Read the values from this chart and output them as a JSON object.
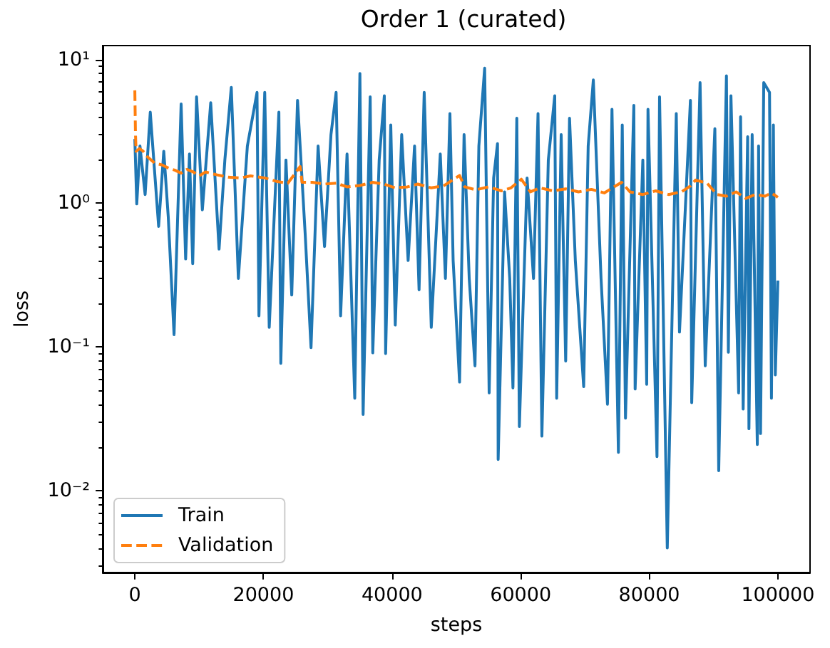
{
  "chart_data": {
    "type": "line",
    "title": "Order 1 (curated)",
    "xlabel": "steps",
    "ylabel": "loss",
    "log": "y",
    "xlim": [
      -5000,
      105000
    ],
    "xticks": [
      0,
      20000,
      40000,
      60000,
      80000,
      100000
    ],
    "ylim": [
      0.0027,
      12.5
    ],
    "yticks": [
      {
        "value": 0.003,
        "label": null
      },
      {
        "value": 0.004,
        "label": null
      },
      {
        "value": 0.005,
        "label": null
      },
      {
        "value": 0.006,
        "label": null
      },
      {
        "value": 0.007,
        "label": null
      },
      {
        "value": 0.008,
        "label": null
      },
      {
        "value": 0.009,
        "label": null
      },
      {
        "value": 0.01,
        "label": "10⁻²"
      },
      {
        "value": 0.02,
        "label": null
      },
      {
        "value": 0.03,
        "label": null
      },
      {
        "value": 0.04,
        "label": null
      },
      {
        "value": 0.05,
        "label": null
      },
      {
        "value": 0.06,
        "label": null
      },
      {
        "value": 0.07,
        "label": null
      },
      {
        "value": 0.08,
        "label": null
      },
      {
        "value": 0.09,
        "label": null
      },
      {
        "value": 0.1,
        "label": "10⁻¹"
      },
      {
        "value": 0.2,
        "label": null
      },
      {
        "value": 0.3,
        "label": null
      },
      {
        "value": 0.4,
        "label": null
      },
      {
        "value": 0.5,
        "label": null
      },
      {
        "value": 0.6,
        "label": null
      },
      {
        "value": 0.7,
        "label": null
      },
      {
        "value": 0.8,
        "label": null
      },
      {
        "value": 0.9,
        "label": null
      },
      {
        "value": 1,
        "label": "10⁰"
      },
      {
        "value": 2,
        "label": null
      },
      {
        "value": 3,
        "label": null
      },
      {
        "value": 4,
        "label": null
      },
      {
        "value": 5,
        "label": null
      },
      {
        "value": 6,
        "label": null
      },
      {
        "value": 7,
        "label": null
      },
      {
        "value": 8,
        "label": null
      },
      {
        "value": 9,
        "label": null
      },
      {
        "value": 10,
        "label": "10¹"
      }
    ],
    "grid": false,
    "legend": "bottom left",
    "marker": "none",
    "series": [
      {
        "name": "Train",
        "color": "#1f77b4",
        "line_style": "solid",
        "x": [
          0,
          300,
          800,
          1600,
          2400,
          3700,
          4500,
          5200,
          6100,
          7200,
          7900,
          8500,
          9000,
          9600,
          10500,
          11800,
          13100,
          14000,
          15000,
          16100,
          17500,
          19000,
          19300,
          20200,
          20900,
          22400,
          22700,
          23500,
          24400,
          25300,
          26500,
          27400,
          28500,
          29500,
          30500,
          31300,
          32000,
          33000,
          34200,
          35000,
          35500,
          36600,
          37000,
          38000,
          38800,
          39000,
          39800,
          40500,
          41500,
          42500,
          43500,
          44200,
          45000,
          46100,
          47500,
          48300,
          49000,
          49500,
          50500,
          51200,
          52000,
          52900,
          53500,
          54400,
          55100,
          55800,
          56400,
          56500,
          57500,
          58300,
          58800,
          59400,
          59800,
          61000,
          62000,
          62700,
          63300,
          64300,
          65300,
          65600,
          66300,
          67000,
          67600,
          68500,
          69800,
          70500,
          71300,
          72500,
          73500,
          74200,
          75200,
          75800,
          76300,
          77600,
          77800,
          79000,
          79600,
          79800,
          81200,
          81600,
          82800,
          84200,
          84700,
          86400,
          86600,
          87900,
          88700,
          90200,
          90800,
          92000,
          92300,
          92700,
          93900,
          94200,
          94600,
          95300,
          95500,
          96000,
          96800,
          97000,
          97300,
          97800,
          98700,
          99000,
          99300,
          99600,
          100000
        ],
        "values": [
          2.8,
          0.99,
          2.5,
          1.15,
          4.3,
          0.69,
          2.3,
          0.8,
          0.122,
          4.9,
          0.41,
          2.2,
          0.38,
          5.5,
          0.9,
          5.0,
          0.48,
          2.0,
          6.4,
          0.3,
          2.5,
          5.9,
          0.165,
          5.9,
          0.137,
          4.3,
          0.077,
          2.0,
          0.23,
          5.2,
          0.6,
          0.099,
          2.5,
          0.5,
          3.0,
          5.9,
          0.165,
          2.2,
          0.044,
          8.0,
          0.034,
          5.5,
          0.091,
          2.0,
          5.6,
          0.09,
          3.5,
          0.142,
          3.0,
          0.4,
          2.5,
          0.25,
          5.9,
          0.137,
          2.2,
          0.3,
          4.2,
          0.4,
          0.057,
          3.0,
          0.3,
          0.074,
          2.5,
          8.7,
          0.048,
          1.5,
          2.6,
          0.0165,
          1.2,
          0.3,
          0.052,
          3.9,
          0.028,
          1.5,
          0.3,
          4.2,
          0.024,
          2.0,
          5.6,
          0.044,
          3.0,
          0.08,
          3.9,
          0.4,
          0.053,
          2.5,
          7.2,
          0.3,
          0.04,
          4.5,
          0.0185,
          3.5,
          0.032,
          4.8,
          0.051,
          2.0,
          0.055,
          4.5,
          0.0173,
          5.5,
          0.004,
          4.2,
          0.127,
          5.2,
          0.041,
          6.9,
          0.074,
          3.3,
          0.0138,
          7.7,
          0.092,
          5.6,
          0.048,
          4.0,
          0.037,
          2.9,
          0.027,
          3.0,
          0.021,
          2.5,
          0.025,
          6.9,
          5.9,
          0.044,
          3.5,
          0.064,
          0.29
        ]
      },
      {
        "name": "Validation",
        "color": "#ff7f0e",
        "line_style": "dashed",
        "x": [
          0,
          100,
          200,
          700,
          1300,
          2000,
          3100,
          4200,
          5300,
          6200,
          7200,
          8100,
          9000,
          10000,
          11000,
          12700,
          14500,
          16400,
          18000,
          20200,
          22000,
          23800,
          25700,
          26000,
          27600,
          29500,
          31300,
          33000,
          35000,
          37000,
          38700,
          40500,
          42400,
          44000,
          46100,
          48000,
          50500,
          51300,
          53000,
          55000,
          57000,
          58500,
          60100,
          61500,
          63000,
          65000,
          67000,
          69000,
          71000,
          73000,
          75700,
          77000,
          79000,
          81000,
          83000,
          85000,
          86400,
          87200,
          89000,
          90500,
          92000,
          93500,
          95000,
          96500,
          98000,
          99000,
          100000
        ],
        "values": [
          6.1,
          3.0,
          2.3,
          2.4,
          2.3,
          2.1,
          1.9,
          1.85,
          1.75,
          1.7,
          1.62,
          1.72,
          1.66,
          1.55,
          1.65,
          1.58,
          1.52,
          1.5,
          1.55,
          1.5,
          1.42,
          1.38,
          1.8,
          1.4,
          1.4,
          1.36,
          1.38,
          1.3,
          1.33,
          1.4,
          1.36,
          1.28,
          1.3,
          1.36,
          1.28,
          1.32,
          1.56,
          1.3,
          1.24,
          1.3,
          1.22,
          1.28,
          1.47,
          1.2,
          1.28,
          1.22,
          1.26,
          1.2,
          1.25,
          1.18,
          1.4,
          1.2,
          1.15,
          1.22,
          1.15,
          1.2,
          1.32,
          1.45,
          1.38,
          1.15,
          1.12,
          1.2,
          1.08,
          1.15,
          1.12,
          1.18,
          1.1
        ]
      }
    ]
  }
}
